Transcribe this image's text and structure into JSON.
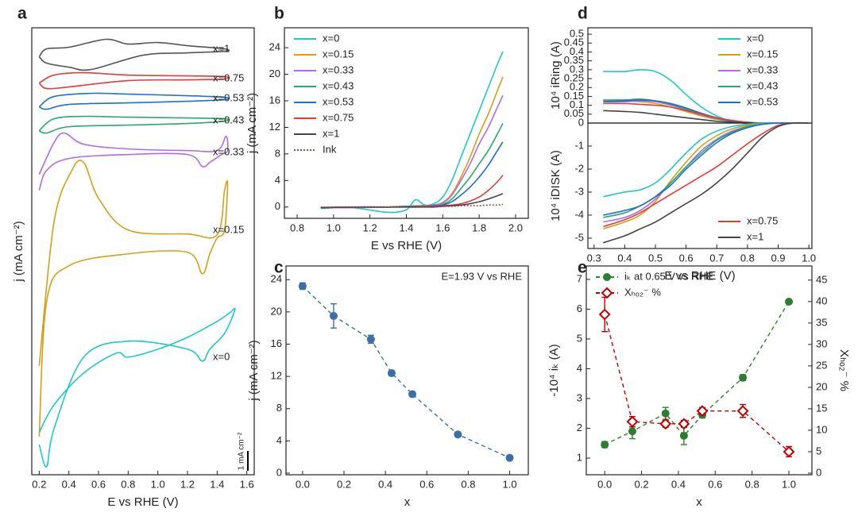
{
  "chart_data": [
    {
      "panel": "a",
      "type": "line",
      "x_label": "E vs RHE (V)",
      "y_label": "j (mA cm⁻²)",
      "xlim": [
        0.15,
        1.65
      ],
      "xticks": [
        0.2,
        0.4,
        0.6,
        0.8,
        {
          "value": 1,
          "label": "1.0"
        },
        1.2,
        1.4,
        1.6
      ],
      "ylim": [
        0,
        22.5
      ],
      "scale_bar": {
        "value": 1,
        "label": "1 mA cm⁻²"
      },
      "legend": "inline",
      "series": [
        {
          "name": "x=1",
          "color": "#555555",
          "x": [
            0.2,
            0.25,
            0.4,
            0.65,
            0.8,
            1.0,
            1.2,
            1.45,
            1.45,
            1.2,
            0.9,
            0.55,
            0.4,
            0.25,
            0.2
          ],
          "values": [
            21.04,
            21.44,
            21.52,
            21.92,
            21.68,
            21.76,
            21.6,
            21.44,
            21.32,
            21.24,
            21.12,
            20.4,
            20.52,
            20.72,
            21.04
          ]
        },
        {
          "name": "x=0.75",
          "color": "#e8393b",
          "x": [
            0.2,
            0.3,
            0.5,
            0.8,
            1.2,
            1.45,
            1.45,
            1.2,
            0.8,
            0.4,
            0.25,
            0.2
          ],
          "values": [
            19.72,
            20.12,
            20.24,
            20.12,
            20.08,
            20.04,
            19.92,
            19.88,
            19.84,
            19.52,
            19.44,
            19.72
          ]
        },
        {
          "name": "x=0.53",
          "color": "#1f6fd1",
          "x": [
            0.2,
            0.3,
            0.55,
            0.8,
            1.2,
            1.45,
            1.45,
            1.2,
            0.8,
            0.4,
            0.25,
            0.2
          ],
          "values": [
            18.52,
            19.04,
            19.2,
            19.16,
            19.08,
            19.0,
            18.88,
            18.8,
            18.72,
            18.64,
            18.4,
            18.52
          ]
        },
        {
          "name": "x=0.43",
          "color": "#2ca86a",
          "x": [
            0.2,
            0.3,
            0.5,
            0.8,
            1.2,
            1.45,
            1.45,
            1.2,
            0.8,
            0.4,
            0.25,
            0.2
          ],
          "values": [
            17.32,
            17.92,
            18.04,
            18.0,
            17.96,
            17.92,
            17.8,
            17.68,
            17.6,
            17.52,
            17.2,
            17.32
          ]
        },
        {
          "name": "x=0.33",
          "color": "#b36ae2",
          "x": [
            0.2,
            0.3,
            0.37,
            0.5,
            0.8,
            1.2,
            1.4,
            1.46,
            1.47,
            1.43,
            1.35,
            1.3,
            1.2,
            0.8,
            0.4,
            0.25,
            0.2
          ],
          "values": [
            15.12,
            16.72,
            17.2,
            16.64,
            16.4,
            16.32,
            16.32,
            17.04,
            16.32,
            16.12,
            15.72,
            15.52,
            16.12,
            16.12,
            15.92,
            15.32,
            14.32
          ]
        },
        {
          "name": "x=0.15",
          "color": "#d4a017",
          "x": [
            0.2,
            0.3,
            0.42,
            0.5,
            0.6,
            0.8,
            1.2,
            1.4,
            1.45,
            1.47,
            1.45,
            1.4,
            1.35,
            1.3,
            1.2,
            0.8,
            0.4,
            0.25,
            0.2
          ],
          "values": [
            5.48,
            12.72,
            15.32,
            15.72,
            13.92,
            12.32,
            12.12,
            12.08,
            14.32,
            14.64,
            12.32,
            11.92,
            11.12,
            10.12,
            11.2,
            11.12,
            10.52,
            8.72,
            1.92
          ]
        },
        {
          "name": "x=0",
          "color": "#1fc8c8",
          "x": [
            0.2,
            0.3,
            0.5,
            0.72,
            0.8,
            1.0,
            1.2,
            1.4,
            1.48,
            1.52,
            1.45,
            1.35,
            1.3,
            1.2,
            0.8,
            0.5,
            0.3,
            0.25,
            0.2
          ],
          "values": [
            2.12,
            3.52,
            5.12,
            6.12,
            5.92,
            6.32,
            6.92,
            7.72,
            8.12,
            8.32,
            7.12,
            6.32,
            5.72,
            6.32,
            6.72,
            5.92,
            2.32,
            0.4,
            1.52
          ]
        }
      ]
    },
    {
      "panel": "b",
      "type": "line",
      "x_label": "E vs RHE (V)",
      "y_label": "j (mA cm⁻²)",
      "xlim": [
        0.73,
        2.07
      ],
      "xticks": [
        0.8,
        {
          "value": 1,
          "label": "1.0"
        },
        1.2,
        1.4,
        1.6,
        1.8,
        {
          "value": 2,
          "label": "2.0"
        }
      ],
      "ylim": [
        -1.7,
        27
      ],
      "yticks": [
        0,
        4,
        8,
        12,
        16,
        20,
        24
      ],
      "legend": "upper left",
      "x": [
        0.93,
        1.1,
        1.3,
        1.4,
        1.45,
        1.5,
        1.55,
        1.6,
        1.65,
        1.7,
        1.75,
        1.8,
        1.85,
        1.9,
        1.93
      ],
      "series": [
        {
          "name": "x=0",
          "color": "#1fc8c8",
          "values": [
            -0.2,
            -0.1,
            -0.8,
            -0.4,
            1.1,
            0.3,
            0.5,
            1.5,
            4,
            7.5,
            11,
            14.5,
            18,
            21.5,
            23.4
          ]
        },
        {
          "name": "x=0.15",
          "color": "#d4a017",
          "values": [
            -0.1,
            -0.1,
            0,
            0.1,
            0.2,
            0.2,
            0.3,
            0.7,
            2,
            4.5,
            7.5,
            11,
            14,
            17.5,
            19.6
          ]
        },
        {
          "name": "x=0.33",
          "color": "#b36ae2",
          "values": [
            -0.1,
            -0.1,
            0,
            0.1,
            0.1,
            0.2,
            0.3,
            0.6,
            1.8,
            4,
            6.5,
            9.5,
            12,
            15,
            16.8
          ]
        },
        {
          "name": "x=0.43",
          "color": "#2ca86a",
          "values": [
            -0.1,
            0,
            0,
            0.1,
            0.1,
            0.2,
            0.2,
            0.4,
            1.2,
            2.8,
            4.5,
            6.5,
            8.5,
            11,
            12.6
          ]
        },
        {
          "name": "x=0.53",
          "color": "#1f6fd1",
          "values": [
            -0.1,
            0,
            0,
            0.1,
            0.1,
            0.1,
            0.2,
            0.3,
            0.8,
            1.8,
            3,
            4.5,
            6.3,
            8.5,
            9.8
          ]
        },
        {
          "name": "x=0.75",
          "color": "#e8393b",
          "values": [
            -0.1,
            0,
            0,
            0,
            0,
            0.1,
            0.1,
            0.2,
            0.3,
            0.5,
            0.9,
            1.5,
            2.5,
            3.8,
            4.8
          ]
        },
        {
          "name": "x=1",
          "color": "#444444",
          "values": [
            -0.1,
            0,
            0,
            0,
            0,
            0,
            0,
            0.1,
            0.2,
            0.3,
            0.5,
            0.8,
            1.2,
            1.7,
            2.0
          ]
        },
        {
          "name": "Ink",
          "color": "#9b4a4a",
          "dash": "dotted",
          "values": [
            0,
            0,
            0,
            0,
            0,
            0,
            0.1,
            0.1,
            0.1,
            0.2,
            0.2,
            0.2,
            0.3,
            0.3,
            0.4
          ]
        }
      ]
    },
    {
      "panel": "c",
      "type": "scatter",
      "x_label": "x",
      "y_label": "j (mA cm⁻²)",
      "annotation": "E=1.93 V vs RHE",
      "xlim": [
        -0.08,
        1.09
      ],
      "xticks": [
        {
          "value": 0,
          "label": "0.0"
        },
        0.2,
        0.4,
        0.6,
        0.8,
        {
          "value": 1,
          "label": "1.0"
        }
      ],
      "ylim": [
        -0.2,
        25.7
      ],
      "yticks": [
        0,
        4,
        8,
        12,
        16,
        20,
        24
      ],
      "line_style": "dashed",
      "series": [
        {
          "color": "#3c6ea8",
          "marker": "circle",
          "x": [
            0,
            0.15,
            0.33,
            0.43,
            0.53,
            0.75,
            1.0
          ],
          "values": [
            23.2,
            19.5,
            16.6,
            12.4,
            9.8,
            4.8,
            1.9
          ],
          "errors": [
            0.4,
            1.5,
            0.5,
            0.3,
            0.3,
            0.3,
            0.2
          ]
        }
      ]
    },
    {
      "panel": "d",
      "type": "line",
      "y_label": "10⁴ iRing (A)",
      "xlim": [
        0.28,
        1.01
      ],
      "ylim": [
        0,
        0.536
      ],
      "yticks": [
        0,
        0.05,
        0.1,
        0.15,
        0.2,
        0.25,
        0.3,
        0.35,
        0.4,
        0.45,
        0.5
      ],
      "legend": "upper right",
      "x": [
        0.33,
        0.4,
        0.45,
        0.5,
        0.55,
        0.6,
        0.65,
        0.7,
        0.75,
        0.8,
        0.85,
        0.9,
        0.95,
        1.0
      ],
      "series": [
        {
          "name": "x=0",
          "color": "#1fc8c8",
          "values": [
            0.29,
            0.29,
            0.3,
            0.29,
            0.24,
            0.16,
            0.09,
            0.04,
            0.01,
            0,
            0,
            0,
            0,
            0
          ]
        },
        {
          "name": "x=0.15",
          "color": "#d4a017",
          "values": [
            0.125,
            0.125,
            0.12,
            0.11,
            0.09,
            0.065,
            0.04,
            0.02,
            0.01,
            0,
            0,
            0,
            0,
            0
          ]
        },
        {
          "name": "x=0.33",
          "color": "#b36ae2",
          "values": [
            0.12,
            0.12,
            0.125,
            0.12,
            0.1,
            0.075,
            0.045,
            0.025,
            0.01,
            0,
            0,
            0,
            0,
            0
          ]
        },
        {
          "name": "x=0.43",
          "color": "#2ca86a",
          "values": [
            0.13,
            0.13,
            0.135,
            0.125,
            0.105,
            0.08,
            0.05,
            0.025,
            0.01,
            0,
            0,
            0,
            0,
            0
          ]
        },
        {
          "name": "x=0.53",
          "color": "#1f6fd1",
          "values": [
            0.12,
            0.125,
            0.13,
            0.125,
            0.11,
            0.085,
            0.055,
            0.03,
            0.01,
            0,
            0,
            0,
            0,
            0
          ]
        },
        {
          "color": "#e8393b",
          "values": [
            0.11,
            0.11,
            0.105,
            0.1,
            0.09,
            0.07,
            0.05,
            0.03,
            0.015,
            0.005,
            0,
            0,
            0,
            0
          ]
        },
        {
          "color": "#444444",
          "values": [
            0.07,
            0.065,
            0.06,
            0.05,
            0.04,
            0.03,
            0.02,
            0.01,
            0.005,
            0,
            0,
            0,
            0,
            0
          ]
        }
      ]
    },
    {
      "type": "line",
      "x_label": "E vs RHE (V)",
      "y_label": "10⁴ iDISK (A)",
      "xlim": [
        0.28,
        1.01
      ],
      "xticks": [
        0.3,
        0.4,
        0.5,
        0.6,
        0.7,
        0.8,
        0.9,
        {
          "value": 1,
          "label": "1.0"
        }
      ],
      "ylim": [
        -5.45,
        0
      ],
      "yticks": [
        -5,
        -4,
        -3,
        -2,
        -1
      ],
      "legend": "lower right",
      "x": [
        0.33,
        0.4,
        0.45,
        0.5,
        0.55,
        0.6,
        0.65,
        0.7,
        0.75,
        0.8,
        0.85,
        0.9,
        0.95,
        1.0
      ],
      "series": [
        {
          "color": "#1fc8c8",
          "values": [
            -3.2,
            -3.0,
            -2.9,
            -2.6,
            -2.0,
            -1.3,
            -0.7,
            -0.35,
            -0.15,
            -0.05,
            0,
            0,
            0,
            0
          ]
        },
        {
          "color": "#d4a017",
          "values": [
            -4.6,
            -4.3,
            -4.0,
            -3.4,
            -2.5,
            -1.7,
            -1.0,
            -0.55,
            -0.25,
            -0.1,
            -0.03,
            0,
            0,
            0
          ]
        },
        {
          "color": "#b36ae2",
          "values": [
            -4.3,
            -4.1,
            -3.8,
            -3.3,
            -2.6,
            -1.9,
            -1.2,
            -0.7,
            -0.35,
            -0.15,
            -0.05,
            0,
            0,
            0
          ]
        },
        {
          "color": "#2ca86a",
          "values": [
            -4.1,
            -3.9,
            -3.6,
            -3.2,
            -2.6,
            -1.9,
            -1.3,
            -0.75,
            -0.4,
            -0.15,
            -0.05,
            0,
            0,
            0
          ]
        },
        {
          "color": "#1f6fd1",
          "values": [
            -4.0,
            -3.8,
            -3.6,
            -3.2,
            -2.7,
            -2.0,
            -1.4,
            -0.85,
            -0.45,
            -0.2,
            -0.05,
            0,
            0,
            0
          ]
        },
        {
          "name": "x=0.75",
          "color": "#e8393b",
          "values": [
            -4.5,
            -4.2,
            -3.9,
            -3.5,
            -3.1,
            -2.7,
            -2.3,
            -1.9,
            -1.4,
            -0.9,
            -0.45,
            -0.1,
            0,
            0
          ]
        },
        {
          "name": "x=1",
          "color": "#444444",
          "values": [
            -5.2,
            -4.9,
            -4.6,
            -4.3,
            -3.9,
            -3.5,
            -3.1,
            -2.6,
            -2.0,
            -1.3,
            -0.6,
            -0.15,
            0,
            0
          ]
        }
      ]
    },
    {
      "panel": "e",
      "type": "scatter",
      "x_label": "x",
      "y_label": "-10⁴ iₖ (A)",
      "y2_label": "Xₕₒ₂⁻ %",
      "xlim": [
        -0.1,
        1.125
      ],
      "xticks": [
        {
          "value": 0,
          "label": "0.0"
        },
        0.2,
        0.4,
        0.6,
        0.8,
        {
          "value": 1,
          "label": "1.0"
        }
      ],
      "ylim": [
        0.44,
        7.45
      ],
      "yticks": [
        1,
        2,
        3,
        4,
        5,
        6,
        7
      ],
      "y2lim": [
        -0.37,
        48.3
      ],
      "y2ticks": [
        0,
        5,
        10,
        15,
        20,
        25,
        30,
        35,
        40,
        45
      ],
      "line_style": "dashed",
      "legend": "upper left",
      "series": [
        {
          "name": "iₖ at 0.65 V vs RHE",
          "color": "#2e7d32",
          "marker": "circle",
          "x": [
            0,
            0.15,
            0.33,
            0.43,
            0.53,
            0.75,
            1.0
          ],
          "values": [
            1.45,
            1.9,
            2.5,
            1.75,
            2.45,
            3.7,
            6.25
          ],
          "errors": [
            0.1,
            0.25,
            0.2,
            0.3,
            0.1,
            0.1,
            0.05
          ]
        },
        {
          "name": "Xₕₒ₂⁻ %",
          "color": "#c00000",
          "marker": "diamond",
          "axis": "y2",
          "x": [
            0,
            0.15,
            0.33,
            0.43,
            0.53,
            0.75,
            1.0
          ],
          "values": [
            37,
            12,
            11.5,
            11.5,
            14.5,
            14.5,
            5
          ],
          "errors": [
            4,
            1.2,
            0.8,
            0.8,
            0.8,
            1.5,
            1.2
          ]
        }
      ]
    }
  ]
}
